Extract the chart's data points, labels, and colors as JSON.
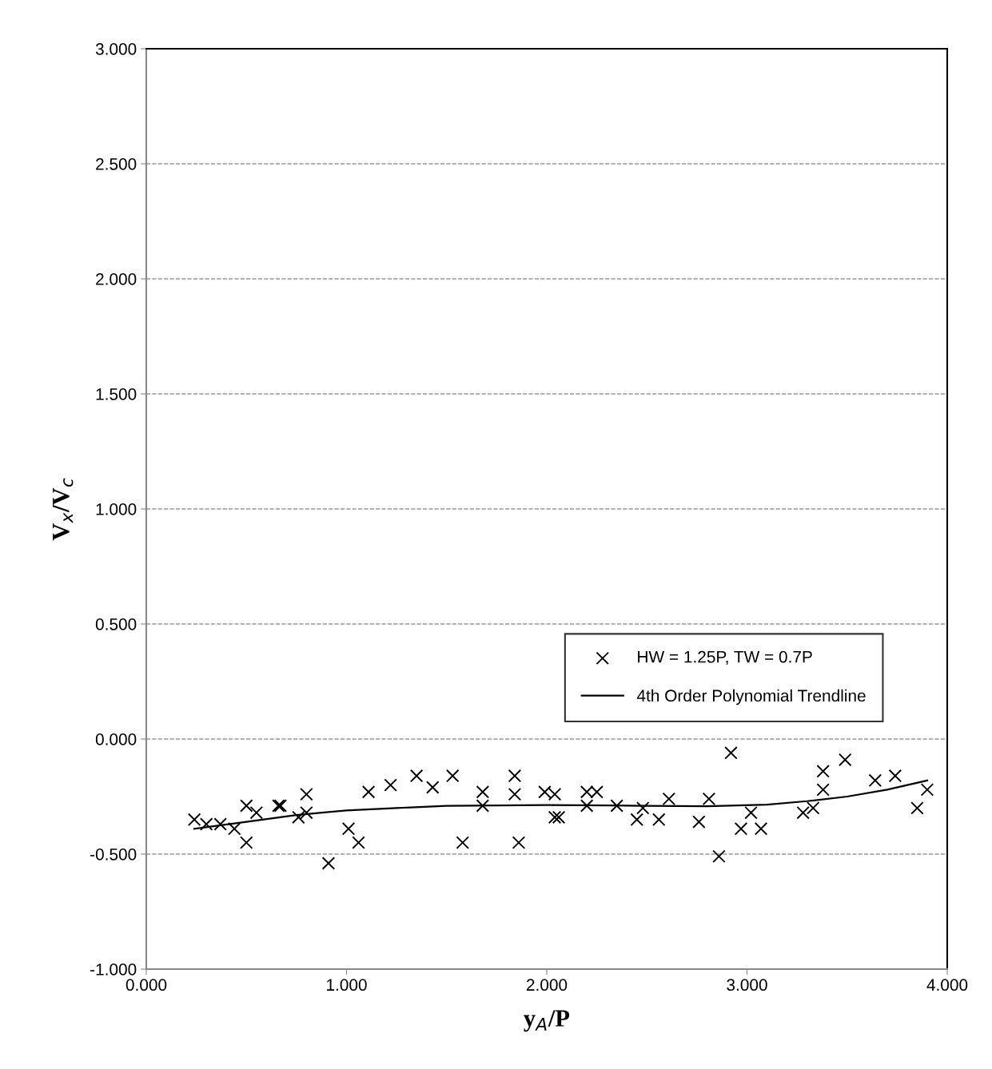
{
  "chart_data": {
    "type": "scatter",
    "xlabel": "y$_{A}$/P",
    "ylabel": "V$_{x}$/V$_{c}$",
    "xlim": [
      0,
      4
    ],
    "ylim": [
      -1,
      3
    ],
    "xticks": [
      {
        "value": 0,
        "label": "0.000"
      },
      {
        "value": 1,
        "label": "1.000"
      },
      {
        "value": 2,
        "label": "2.000"
      },
      {
        "value": 3,
        "label": "3.000"
      },
      {
        "value": 4,
        "label": "4.000"
      }
    ],
    "yticks": [
      {
        "value": -1,
        "label": "-1.000"
      },
      {
        "value": -0.5,
        "label": "-0.500"
      },
      {
        "value": 0,
        "label": "0.000"
      },
      {
        "value": 0.5,
        "label": "0.500"
      },
      {
        "value": 1,
        "label": "1.000"
      },
      {
        "value": 1.5,
        "label": "1.500"
      },
      {
        "value": 2,
        "label": "2.000"
      },
      {
        "value": 2.5,
        "label": "2.500"
      },
      {
        "value": 3,
        "label": "3.000"
      }
    ],
    "grid": "y",
    "legend": "right",
    "series": [
      {
        "name": "HW = 1.25P, TW = 0.7P",
        "marker": "cross",
        "color": "#000000",
        "x": [
          0.24,
          0.3,
          0.37,
          0.44,
          0.5,
          0.5,
          0.55,
          0.66,
          0.67,
          0.76,
          0.8,
          0.8,
          0.91,
          1.01,
          1.06,
          1.11,
          1.22,
          1.35,
          1.43,
          1.53,
          1.58,
          1.68,
          1.68,
          1.84,
          1.84,
          1.86,
          1.99,
          2.04,
          2.04,
          2.06,
          2.2,
          2.25,
          2.2,
          2.35,
          2.45,
          2.48,
          2.56,
          2.61,
          2.76,
          2.81,
          2.86,
          2.92,
          2.97,
          3.02,
          3.07,
          3.28,
          3.33,
          3.38,
          3.38,
          3.49,
          3.64,
          3.74,
          3.85,
          3.9
        ],
        "values": [
          -0.35,
          -0.37,
          -0.37,
          -0.39,
          -0.29,
          -0.45,
          -0.32,
          -0.29,
          -0.29,
          -0.34,
          -0.24,
          -0.32,
          -0.54,
          -0.39,
          -0.45,
          -0.23,
          -0.2,
          -0.16,
          -0.21,
          -0.16,
          -0.45,
          -0.23,
          -0.29,
          -0.16,
          -0.24,
          -0.45,
          -0.23,
          -0.24,
          -0.34,
          -0.34,
          -0.23,
          -0.23,
          -0.29,
          -0.29,
          -0.35,
          -0.3,
          -0.35,
          -0.26,
          -0.36,
          -0.26,
          -0.51,
          -0.06,
          -0.39,
          -0.32,
          -0.39,
          -0.32,
          -0.3,
          -0.14,
          -0.22,
          -0.09,
          -0.18,
          -0.16,
          -0.3,
          -0.22
        ]
      },
      {
        "name": "4th Order Polynomial Trendline",
        "type": "line",
        "marker": "none",
        "line_style": "solid",
        "color": "#000000",
        "x": [
          0.24,
          0.5,
          0.75,
          1.0,
          1.25,
          1.5,
          2.0,
          2.5,
          2.8,
          3.1,
          3.3,
          3.5,
          3.7,
          3.9
        ],
        "values": [
          -0.39,
          -0.36,
          -0.33,
          -0.31,
          -0.3,
          -0.29,
          -0.287,
          -0.29,
          -0.292,
          -0.285,
          -0.27,
          -0.25,
          -0.22,
          -0.18
        ]
      }
    ]
  }
}
